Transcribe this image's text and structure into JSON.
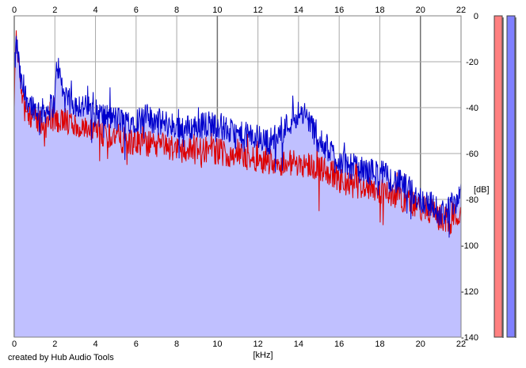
{
  "chart_data": {
    "type": "area",
    "xlabel": "[kHz]",
    "ylabel": "[dB]",
    "xlim": [
      0,
      22
    ],
    "ylim": [
      -140,
      0
    ],
    "x_ticks": [
      0,
      2,
      4,
      6,
      8,
      10,
      12,
      14,
      16,
      18,
      20,
      22
    ],
    "y_ticks": [
      0,
      -20,
      -40,
      -60,
      -80,
      -100,
      -120,
      -140
    ],
    "grid": true,
    "series": [
      {
        "color": "#0000cc",
        "fill": "#c0c0ff",
        "x": [
          0,
          0.1,
          0.2,
          0.3,
          0.5,
          0.8,
          1,
          1.3,
          1.6,
          2,
          2.1,
          2.5,
          3,
          3.5,
          4,
          4.5,
          5,
          5.5,
          6,
          6.5,
          7,
          7.5,
          8,
          8.5,
          9,
          9.5,
          10,
          10.5,
          11,
          11.5,
          12,
          12.5,
          13,
          13.5,
          14,
          14.5,
          15,
          15.5,
          16,
          16.5,
          17,
          17.5,
          18,
          18.5,
          19,
          19.5,
          20,
          20.5,
          21,
          21.5,
          22
        ],
        "values": [
          -25,
          -12,
          -18,
          -28,
          -34,
          -38,
          -40,
          -42,
          -41,
          -38,
          -20,
          -37,
          -38,
          -40,
          -42,
          -44,
          -45,
          -46,
          -45,
          -44,
          -46,
          -47,
          -48,
          -49,
          -48,
          -47,
          -47,
          -50,
          -52,
          -52,
          -53,
          -55,
          -52,
          -47,
          -42,
          -45,
          -55,
          -58,
          -63,
          -65,
          -67,
          -68,
          -68,
          -71,
          -73,
          -76,
          -80,
          -82,
          -86,
          -84,
          -76
        ]
      },
      {
        "color": "#dd0000",
        "x": [
          0,
          0.1,
          0.2,
          0.3,
          0.5,
          0.8,
          1,
          1.3,
          1.6,
          2,
          2.5,
          3,
          3.5,
          4,
          4.5,
          5,
          5.5,
          6,
          6.5,
          7,
          7.5,
          8,
          8.5,
          9,
          9.5,
          10,
          10.5,
          11,
          11.5,
          12,
          12.5,
          13,
          13.5,
          14,
          14.5,
          15,
          15.5,
          16,
          16.5,
          17,
          17.5,
          18,
          18.5,
          19,
          19.5,
          20,
          20.5,
          21,
          21.5,
          22
        ],
        "values": [
          -35,
          -10,
          -18,
          -30,
          -40,
          -43,
          -45,
          -46,
          -47,
          -45,
          -46,
          -48,
          -50,
          -51,
          -52,
          -52,
          -55,
          -55,
          -56,
          -56,
          -57,
          -58,
          -58,
          -59,
          -58,
          -59,
          -60,
          -60,
          -62,
          -62,
          -63,
          -64,
          -64,
          -64,
          -65,
          -66,
          -68,
          -72,
          -74,
          -74,
          -74,
          -76,
          -77,
          -79,
          -81,
          -84,
          -85,
          -88,
          -90,
          -84
        ]
      }
    ],
    "level_meters": [
      {
        "color": "#ff8080",
        "level": 1.0
      },
      {
        "color": "#8080ff",
        "level": 1.0
      }
    ]
  },
  "credit": "created by Hub Audio Tools"
}
